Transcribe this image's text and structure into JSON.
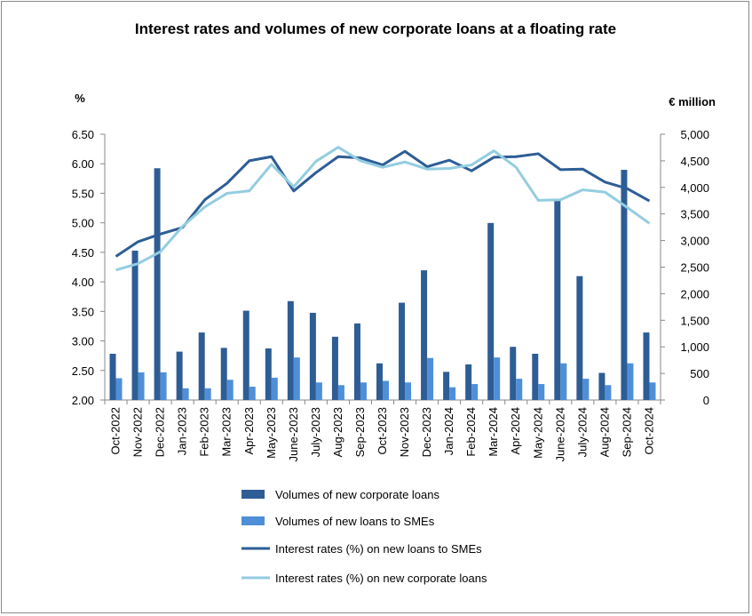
{
  "chart_data": {
    "type": "bar",
    "title": "Interest rates and volumes of new corporate loans at a floating rate",
    "left_axis": {
      "unit": "%",
      "range": [
        2.0,
        6.5
      ],
      "ticks": [
        "2.00",
        "2.50",
        "3.00",
        "3.50",
        "4.00",
        "4.50",
        "5.00",
        "5.50",
        "6.00",
        "6.50"
      ],
      "tick_values": [
        2.0,
        2.5,
        3.0,
        3.5,
        4.0,
        4.5,
        5.0,
        5.5,
        6.0,
        6.5
      ]
    },
    "right_axis": {
      "unit": "€ million",
      "range": [
        0,
        5000
      ],
      "ticks": [
        "0",
        "500",
        "1,000",
        "1,500",
        "2,000",
        "2,500",
        "3,000",
        "3,500",
        "4,000",
        "4,500",
        "5,000"
      ],
      "tick_values": [
        0,
        500,
        1000,
        1500,
        2000,
        2500,
        3000,
        3500,
        4000,
        4500,
        5000
      ]
    },
    "categories": [
      "Oct-2022",
      "Nov-2022",
      "Dec-2022",
      "Jan-2023",
      "Feb-2023",
      "Mar-2023",
      "Apr-2023",
      "May-2023",
      "June-2023",
      "July-2023",
      "Aug-2023",
      "Sep-2023",
      "Oct-2023",
      "Nov-2023",
      "Dec-2023",
      "Jan-2024",
      "Feb-2024",
      "Mar-2024",
      "Apr-2024",
      "May-2024",
      "June-2024",
      "July-2024",
      "Aug-2024",
      "Sep-2024",
      "Oct-2024"
    ],
    "series": [
      {
        "name": "Volumes of new corporate loans",
        "kind": "bar",
        "axis": "right",
        "color": "#2e5d95",
        "values": [
          870,
          2810,
          4360,
          910,
          1270,
          980,
          1680,
          970,
          1860,
          1640,
          1190,
          1440,
          690,
          1830,
          2440,
          530,
          670,
          3330,
          1000,
          870,
          3780,
          2330,
          510,
          4330,
          1270
        ]
      },
      {
        "name": "Volumes of new loans to SMEs",
        "kind": "bar",
        "axis": "right",
        "color": "#4f8fd8",
        "values": [
          410,
          520,
          520,
          220,
          220,
          380,
          250,
          420,
          800,
          330,
          280,
          330,
          360,
          330,
          790,
          240,
          300,
          800,
          400,
          300,
          690,
          400,
          280,
          690,
          330
        ]
      },
      {
        "name": "Interest rates (%) on new loans to SMEs",
        "kind": "line",
        "axis": "left",
        "color": "#2e5d95",
        "values": [
          4.43,
          4.68,
          4.81,
          4.92,
          5.39,
          5.67,
          6.05,
          6.12,
          5.54,
          5.85,
          6.12,
          6.1,
          5.98,
          6.21,
          5.95,
          6.06,
          5.88,
          6.11,
          6.12,
          6.17,
          5.9,
          5.91,
          5.69,
          5.58,
          5.37
        ]
      },
      {
        "name": "Interest rates (%) on new corporate loans",
        "kind": "line",
        "axis": "left",
        "color": "#93cde0",
        "values": [
          4.2,
          4.31,
          4.51,
          4.94,
          5.27,
          5.5,
          5.54,
          5.99,
          5.61,
          6.04,
          6.28,
          6.05,
          5.94,
          6.03,
          5.91,
          5.92,
          5.98,
          6.22,
          5.94,
          5.38,
          5.39,
          5.56,
          5.52,
          5.26,
          4.99
        ]
      }
    ],
    "legend_position": "bottom",
    "grid": false
  }
}
